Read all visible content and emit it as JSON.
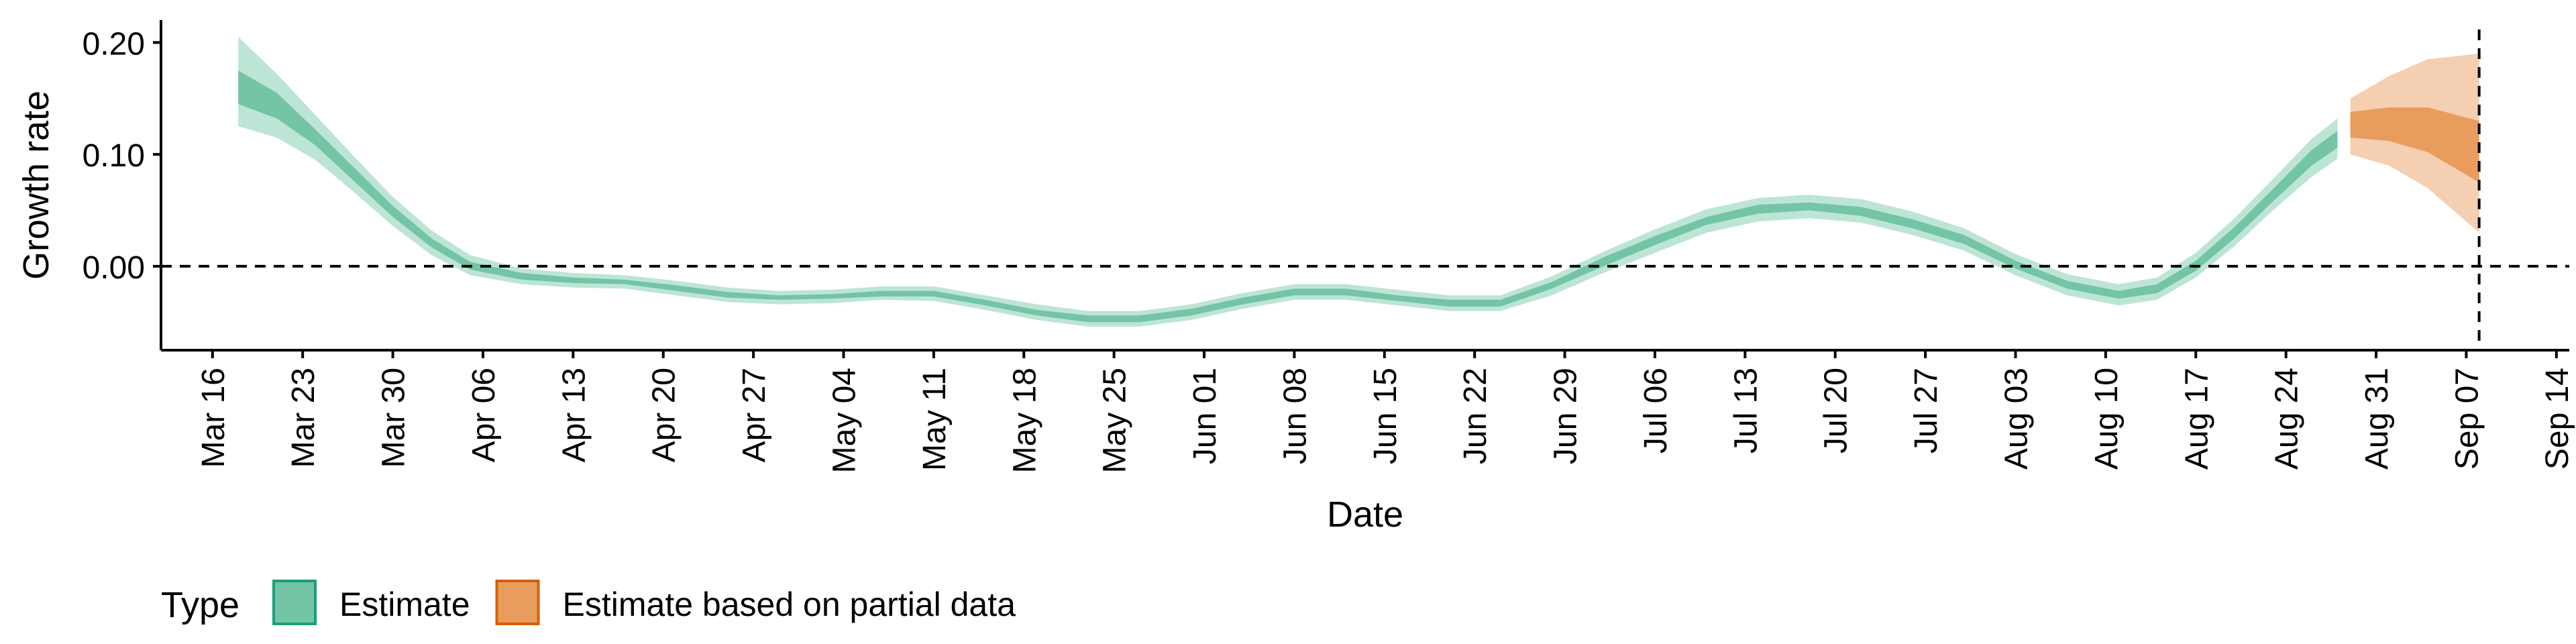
{
  "chart_data": {
    "type": "line",
    "xlabel": "Date",
    "ylabel": "Growth rate",
    "x_range": [
      "2020-03-12",
      "2020-09-15"
    ],
    "ylim": [
      -0.075,
      0.22
    ],
    "y_ticks": [
      0.0,
      0.1,
      0.2
    ],
    "y_tick_labels": [
      "0.00",
      "0.10",
      "0.20"
    ],
    "x_ticks": [
      "2020-03-16",
      "2020-03-23",
      "2020-03-30",
      "2020-04-06",
      "2020-04-13",
      "2020-04-20",
      "2020-04-27",
      "2020-05-04",
      "2020-05-11",
      "2020-05-18",
      "2020-05-25",
      "2020-06-01",
      "2020-06-08",
      "2020-06-15",
      "2020-06-22",
      "2020-06-29",
      "2020-07-06",
      "2020-07-13",
      "2020-07-20",
      "2020-07-27",
      "2020-08-03",
      "2020-08-10",
      "2020-08-17",
      "2020-08-24",
      "2020-08-31",
      "2020-09-07",
      "2020-09-14"
    ],
    "x_tick_labels": [
      "Mar 16",
      "Mar 23",
      "Mar 30",
      "Apr 06",
      "Apr 13",
      "Apr 20",
      "Apr 27",
      "May 04",
      "May 11",
      "May 18",
      "May 25",
      "Jun 01",
      "Jun 08",
      "Jun 15",
      "Jun 22",
      "Jun 29",
      "Jul 06",
      "Jul 13",
      "Jul 20",
      "Jul 27",
      "Aug 03",
      "Aug 10",
      "Aug 17",
      "Aug 24",
      "Aug 31",
      "Sep 07",
      "Sep 14"
    ],
    "reference_lines": {
      "y_zero": 0,
      "vertical_date": "2020-09-08"
    },
    "legend": {
      "title": "Type",
      "placement": "bottom-left",
      "entries": [
        {
          "label": "Estimate",
          "fill": "#74c4a6",
          "border": "#1b9e77"
        },
        {
          "label": "Estimate based on partial data",
          "fill": "#e89d5e",
          "border": "#d95f02"
        }
      ]
    },
    "series": [
      {
        "name": "Estimate",
        "color_outer": "#bde5d6",
        "color_inner": "#74c4a6",
        "points": [
          {
            "date": "2020-03-18",
            "lo90": 0.125,
            "lo50": 0.145,
            "hi50": 0.175,
            "hi90": 0.205
          },
          {
            "date": "2020-03-21",
            "lo90": 0.115,
            "lo50": 0.132,
            "hi50": 0.155,
            "hi90": 0.172
          },
          {
            "date": "2020-03-24",
            "lo90": 0.095,
            "lo50": 0.108,
            "hi50": 0.122,
            "hi90": 0.135
          },
          {
            "date": "2020-03-27",
            "lo90": 0.066,
            "lo50": 0.076,
            "hi50": 0.088,
            "hi90": 0.098
          },
          {
            "date": "2020-03-30",
            "lo90": 0.036,
            "lo50": 0.044,
            "hi50": 0.054,
            "hi90": 0.062
          },
          {
            "date": "2020-04-02",
            "lo90": 0.01,
            "lo50": 0.017,
            "hi50": 0.025,
            "hi90": 0.032
          },
          {
            "date": "2020-04-05",
            "lo90": -0.008,
            "lo50": -0.003,
            "hi50": 0.004,
            "hi90": 0.01
          },
          {
            "date": "2020-04-09",
            "lo90": -0.016,
            "lo50": -0.012,
            "hi50": -0.006,
            "hi90": -0.002
          },
          {
            "date": "2020-04-13",
            "lo90": -0.019,
            "lo50": -0.015,
            "hi50": -0.01,
            "hi90": -0.006
          },
          {
            "date": "2020-04-17",
            "lo90": -0.02,
            "lo50": -0.016,
            "hi50": -0.012,
            "hi90": -0.008
          },
          {
            "date": "2020-04-21",
            "lo90": -0.026,
            "lo50": -0.022,
            "hi50": -0.017,
            "hi90": -0.013
          },
          {
            "date": "2020-04-25",
            "lo90": -0.032,
            "lo50": -0.028,
            "hi50": -0.023,
            "hi90": -0.019
          },
          {
            "date": "2020-04-29",
            "lo90": -0.034,
            "lo50": -0.03,
            "hi50": -0.026,
            "hi90": -0.022
          },
          {
            "date": "2020-05-03",
            "lo90": -0.033,
            "lo50": -0.029,
            "hi50": -0.025,
            "hi90": -0.021
          },
          {
            "date": "2020-05-07",
            "lo90": -0.03,
            "lo50": -0.027,
            "hi50": -0.022,
            "hi90": -0.018
          },
          {
            "date": "2020-05-11",
            "lo90": -0.031,
            "lo50": -0.027,
            "hi50": -0.022,
            "hi90": -0.018
          },
          {
            "date": "2020-05-15",
            "lo90": -0.039,
            "lo50": -0.035,
            "hi50": -0.03,
            "hi90": -0.026
          },
          {
            "date": "2020-05-19",
            "lo90": -0.048,
            "lo50": -0.044,
            "hi50": -0.039,
            "hi90": -0.034
          },
          {
            "date": "2020-05-23",
            "lo90": -0.054,
            "lo50": -0.05,
            "hi50": -0.044,
            "hi90": -0.04
          },
          {
            "date": "2020-05-27",
            "lo90": -0.054,
            "lo50": -0.05,
            "hi50": -0.044,
            "hi90": -0.04
          },
          {
            "date": "2020-05-31",
            "lo90": -0.048,
            "lo50": -0.044,
            "hi50": -0.038,
            "hi90": -0.034
          },
          {
            "date": "2020-06-04",
            "lo90": -0.038,
            "lo50": -0.034,
            "hi50": -0.028,
            "hi90": -0.024
          },
          {
            "date": "2020-06-08",
            "lo90": -0.03,
            "lo50": -0.026,
            "hi50": -0.02,
            "hi90": -0.016
          },
          {
            "date": "2020-06-12",
            "lo90": -0.03,
            "lo50": -0.026,
            "hi50": -0.02,
            "hi90": -0.016
          },
          {
            "date": "2020-06-16",
            "lo90": -0.035,
            "lo50": -0.031,
            "hi50": -0.026,
            "hi90": -0.021
          },
          {
            "date": "2020-06-20",
            "lo90": -0.04,
            "lo50": -0.036,
            "hi50": -0.03,
            "hi90": -0.026
          },
          {
            "date": "2020-06-24",
            "lo90": -0.04,
            "lo50": -0.036,
            "hi50": -0.03,
            "hi90": -0.026
          },
          {
            "date": "2020-06-28",
            "lo90": -0.026,
            "lo50": -0.02,
            "hi50": -0.014,
            "hi90": -0.009
          },
          {
            "date": "2020-07-02",
            "lo90": -0.006,
            "lo50": 0.0,
            "hi50": 0.008,
            "hi90": 0.013
          },
          {
            "date": "2020-07-06",
            "lo90": 0.012,
            "lo50": 0.019,
            "hi50": 0.027,
            "hi90": 0.033
          },
          {
            "date": "2020-07-10",
            "lo90": 0.03,
            "lo50": 0.037,
            "hi50": 0.044,
            "hi90": 0.051
          },
          {
            "date": "2020-07-14",
            "lo90": 0.04,
            "lo50": 0.047,
            "hi50": 0.055,
            "hi90": 0.061
          },
          {
            "date": "2020-07-18",
            "lo90": 0.043,
            "lo50": 0.05,
            "hi50": 0.057,
            "hi90": 0.064
          },
          {
            "date": "2020-07-22",
            "lo90": 0.039,
            "lo50": 0.045,
            "hi50": 0.053,
            "hi90": 0.06
          },
          {
            "date": "2020-07-26",
            "lo90": 0.028,
            "lo50": 0.034,
            "hi50": 0.042,
            "hi90": 0.049
          },
          {
            "date": "2020-07-30",
            "lo90": 0.014,
            "lo50": 0.02,
            "hi50": 0.028,
            "hi90": 0.034
          },
          {
            "date": "2020-08-03",
            "lo90": -0.008,
            "lo50": -0.002,
            "hi50": 0.005,
            "hi90": 0.011
          },
          {
            "date": "2020-08-07",
            "lo90": -0.026,
            "lo50": -0.02,
            "hi50": -0.013,
            "hi90": -0.007
          },
          {
            "date": "2020-08-11",
            "lo90": -0.035,
            "lo50": -0.029,
            "hi50": -0.022,
            "hi90": -0.016
          },
          {
            "date": "2020-08-14",
            "lo90": -0.03,
            "lo50": -0.024,
            "hi50": -0.016,
            "hi90": -0.01
          },
          {
            "date": "2020-08-17",
            "lo90": -0.01,
            "lo50": -0.004,
            "hi50": 0.005,
            "hi90": 0.012
          },
          {
            "date": "2020-08-20",
            "lo90": 0.018,
            "lo50": 0.025,
            "hi50": 0.035,
            "hi90": 0.043
          },
          {
            "date": "2020-08-23",
            "lo90": 0.05,
            "lo50": 0.058,
            "hi50": 0.069,
            "hi90": 0.078
          },
          {
            "date": "2020-08-26",
            "lo90": 0.08,
            "lo50": 0.09,
            "hi50": 0.104,
            "hi90": 0.114
          },
          {
            "date": "2020-08-28",
            "lo90": 0.096,
            "lo50": 0.106,
            "hi50": 0.121,
            "hi90": 0.132
          }
        ]
      },
      {
        "name": "Estimate based on partial data",
        "color_outer": "#f5cfb2",
        "color_inner": "#e89d5e",
        "points": [
          {
            "date": "2020-08-29",
            "lo90": 0.1,
            "lo50": 0.115,
            "hi50": 0.138,
            "hi90": 0.15
          },
          {
            "date": "2020-09-01",
            "lo90": 0.09,
            "lo50": 0.112,
            "hi50": 0.142,
            "hi90": 0.17
          },
          {
            "date": "2020-09-04",
            "lo90": 0.07,
            "lo50": 0.102,
            "hi50": 0.142,
            "hi90": 0.185
          },
          {
            "date": "2020-09-08",
            "lo90": 0.03,
            "lo50": 0.075,
            "hi50": 0.13,
            "hi90": 0.19
          }
        ]
      }
    ]
  }
}
